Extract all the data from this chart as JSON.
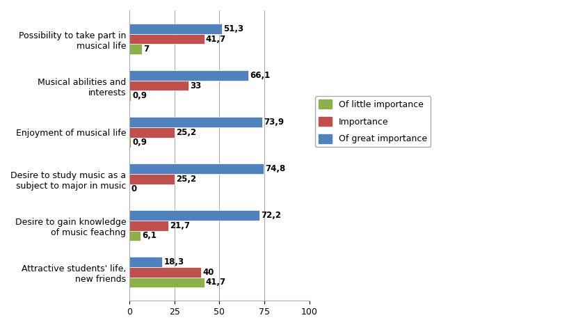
{
  "categories": [
    "Possibility to take part in\nmusical life",
    "Musical abilities and\ninterests",
    "Enjoyment of musical life",
    "Desire to study music as a\nsubject to major in music",
    "Desire to gain knowledge\nof music feachng",
    "Attractive students' life,\nnew friends"
  ],
  "little_importance": [
    7,
    0.9,
    0.9,
    0,
    6.1,
    41.7
  ],
  "importance": [
    41.7,
    33,
    25.2,
    25.2,
    21.7,
    40
  ],
  "great_importance": [
    51.3,
    66.1,
    73.9,
    74.8,
    72.2,
    18.3
  ],
  "little_color": "#8DB048",
  "importance_color": "#C0504D",
  "great_color": "#4F81BD",
  "legend_labels": [
    "Of little importance",
    "Importance",
    "Of great importance"
  ],
  "xlim": [
    0,
    100
  ],
  "xticks": [
    0,
    25,
    50,
    75,
    100
  ],
  "bar_height": 0.22,
  "bg_color": "#FFFFFF",
  "grid_color": "#AAAAAA"
}
